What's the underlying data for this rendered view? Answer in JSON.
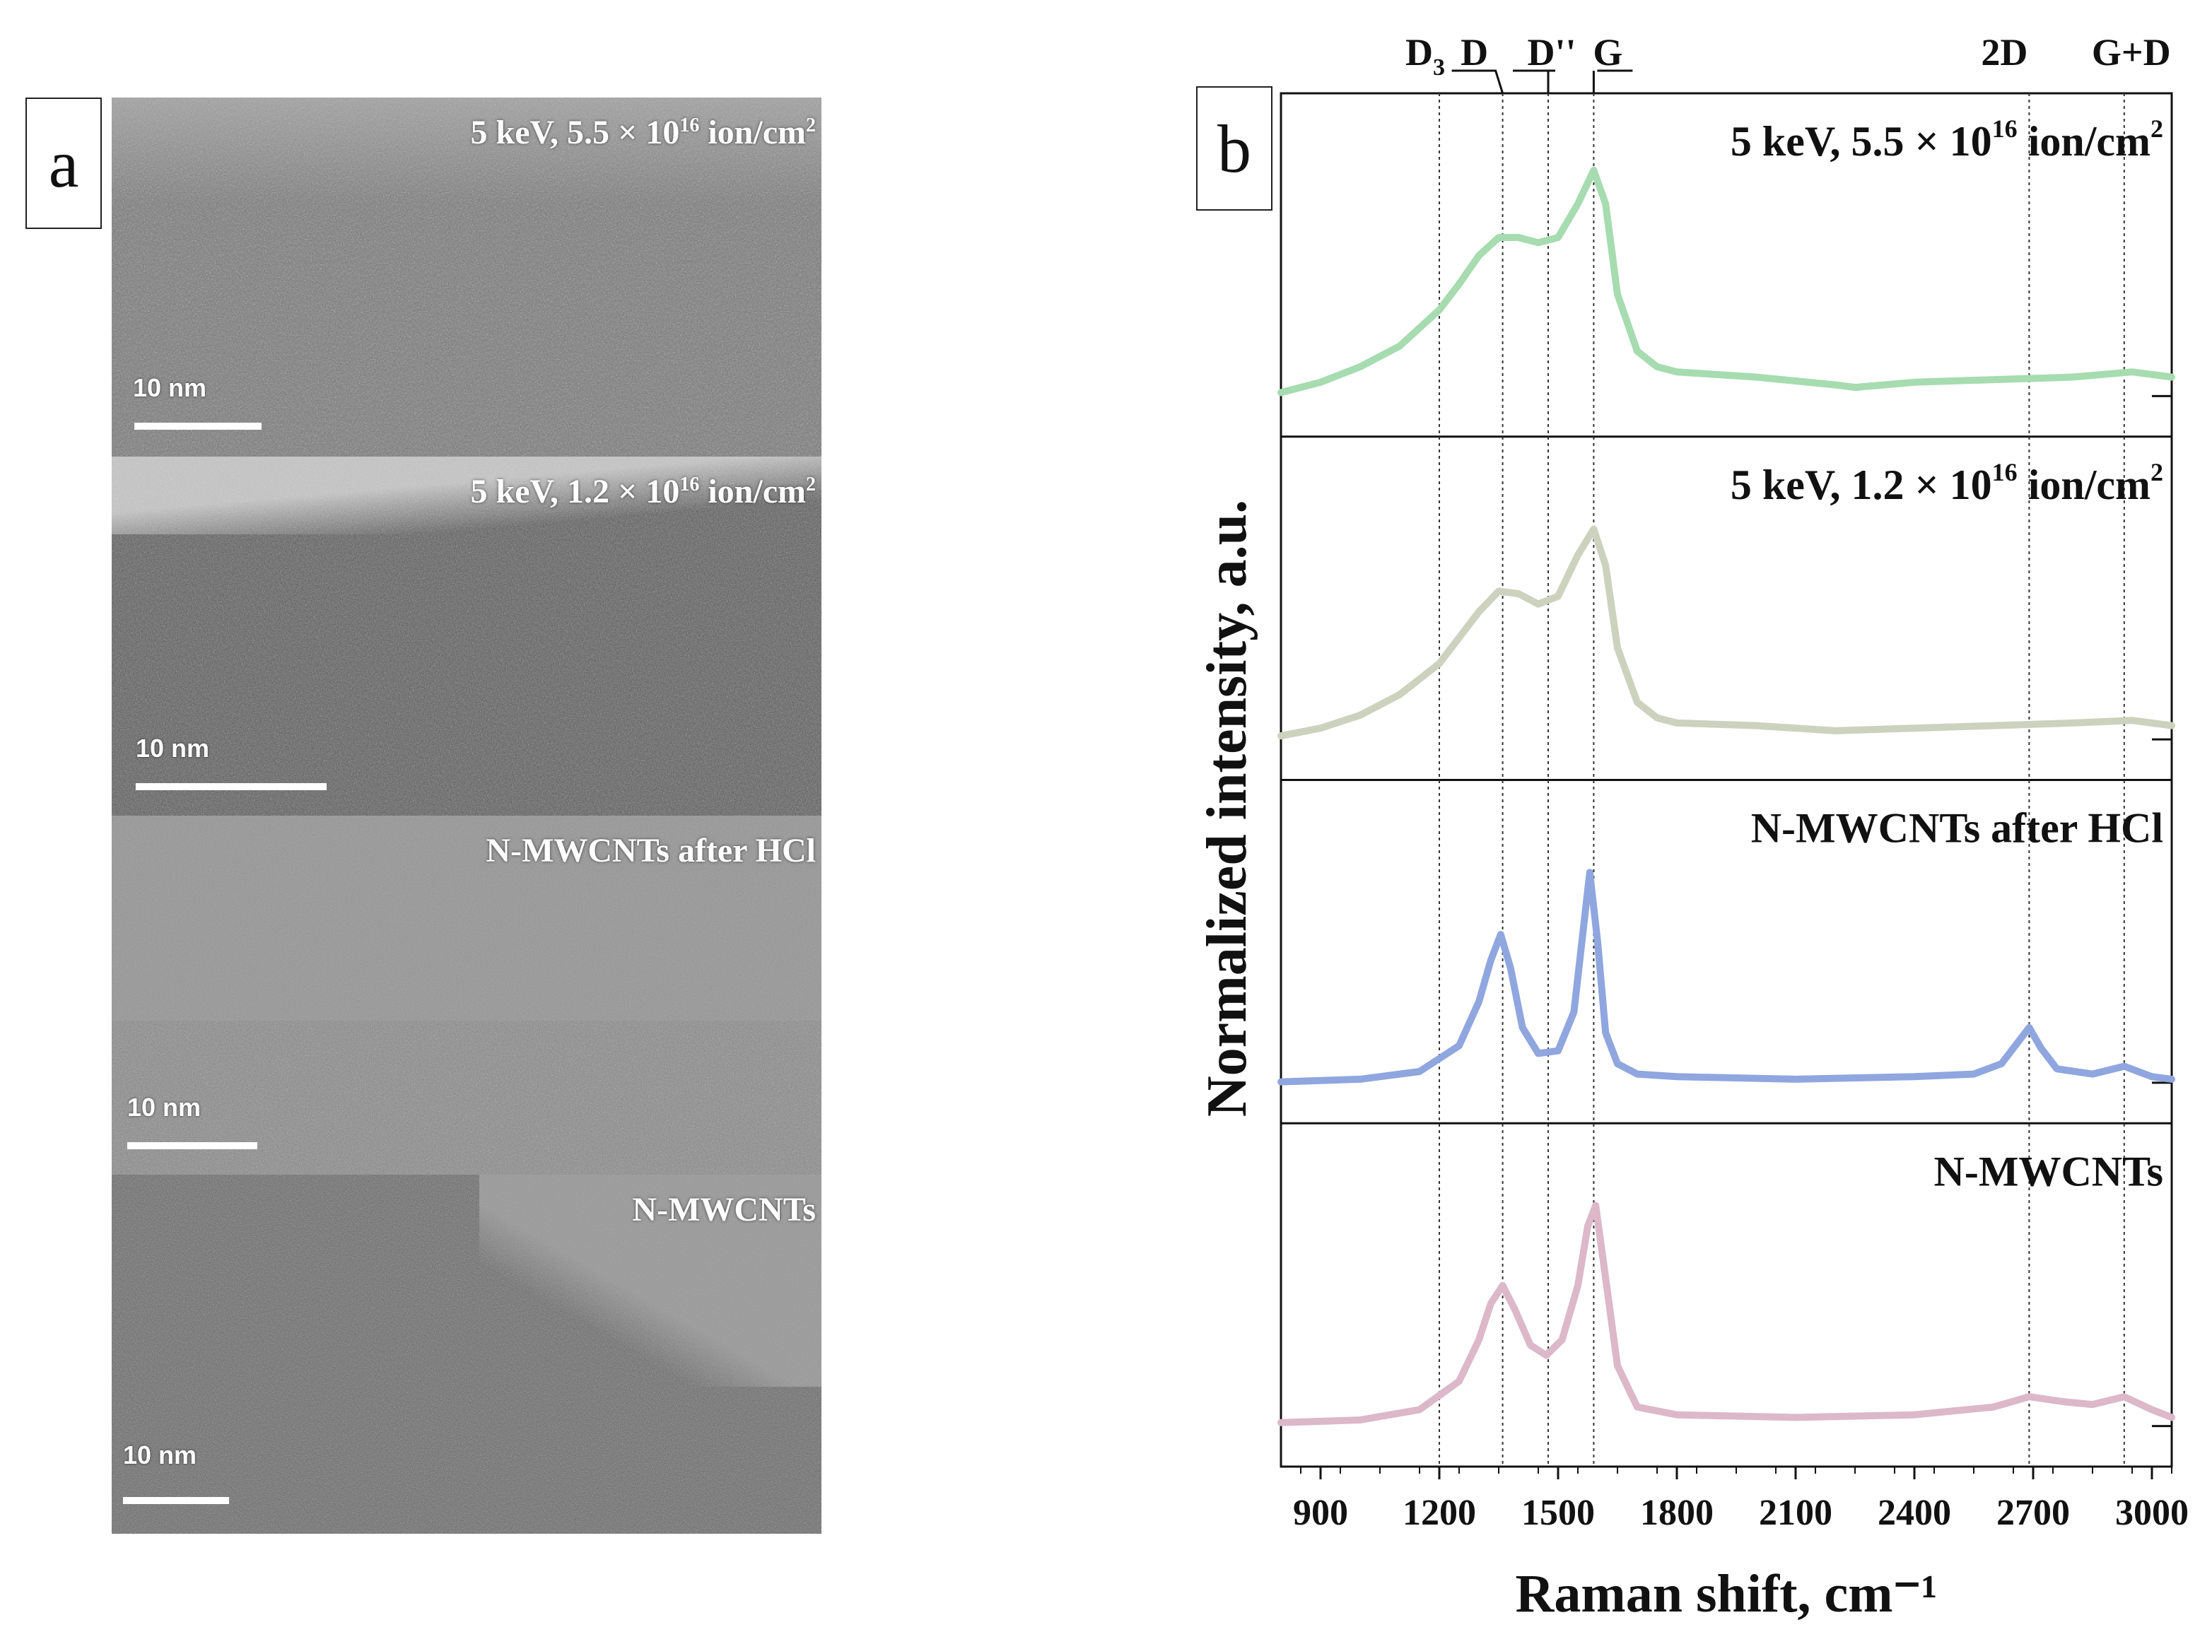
{
  "figure": {
    "panel_a_label": "a",
    "panel_b_label": "b"
  },
  "tem_panels": [
    {
      "caption_prefix": "5 keV, 5.5 ×  10",
      "caption_exp": "16",
      "caption_suffix": " ion/cm",
      "caption_sup2": "2",
      "scale_label": "10 nm",
      "tone": "#7a7a7a"
    },
    {
      "caption_prefix": "5 keV, 1.2 ×  10",
      "caption_exp": "16",
      "caption_suffix": " ion/cm",
      "caption_sup2": "2",
      "scale_label": "10 nm",
      "tone": "#5e5e5e"
    },
    {
      "caption_prefix": "N-MWCNTs after HCl",
      "caption_exp": "",
      "caption_suffix": "",
      "caption_sup2": "",
      "scale_label": "10 nm",
      "tone": "#8a8a8a"
    },
    {
      "caption_prefix": "N-MWCNTs",
      "caption_exp": "",
      "caption_suffix": "",
      "caption_sup2": "",
      "scale_label": "10 nm",
      "tone": "#6a6a6a"
    }
  ],
  "chart_data": {
    "type": "line",
    "xlabel": "Raman shift, cm⁻¹",
    "ylabel": "Normalized intensity, a.u.",
    "xlim": [
      800,
      3050
    ],
    "xticks": [
      900,
      1200,
      1500,
      1800,
      2100,
      2400,
      2700,
      3000
    ],
    "band_lines": [
      {
        "name": "D",
        "sub": "3",
        "x": 1200
      },
      {
        "name": "D",
        "sub": "",
        "x": 1360
      },
      {
        "name": "D''",
        "sub": "",
        "x": 1475
      },
      {
        "name": "G",
        "sub": "",
        "x": 1590
      },
      {
        "name": "2D",
        "sub": "",
        "x": 2690
      },
      {
        "name": "G+D",
        "sub": "",
        "x": 2930
      }
    ],
    "series": [
      {
        "name_prefix": "5 keV, 5.5 × 10",
        "name_exp": "16",
        "name_suffix": " ion/cm",
        "name_sup": "2",
        "color": "#a6dcb0",
        "x": [
          800,
          900,
          1000,
          1100,
          1200,
          1250,
          1300,
          1350,
          1400,
          1450,
          1500,
          1550,
          1590,
          1620,
          1650,
          1700,
          1750,
          1800,
          2000,
          2200,
          2250,
          2400,
          2600,
          2800,
          2950,
          3050
        ],
        "y": [
          0.02,
          0.06,
          0.12,
          0.2,
          0.34,
          0.44,
          0.55,
          0.62,
          0.62,
          0.6,
          0.62,
          0.75,
          0.88,
          0.75,
          0.4,
          0.18,
          0.12,
          0.1,
          0.08,
          0.05,
          0.04,
          0.06,
          0.07,
          0.08,
          0.1,
          0.08
        ]
      },
      {
        "name_prefix": "5 keV, 1.2 × 10",
        "name_exp": "16",
        "name_suffix": " ion/cm",
        "name_sup": "2",
        "color": "#ccd2bd",
        "x": [
          800,
          900,
          1000,
          1100,
          1200,
          1250,
          1300,
          1350,
          1400,
          1450,
          1500,
          1550,
          1590,
          1620,
          1650,
          1700,
          1750,
          1800,
          2000,
          2200,
          2400,
          2600,
          2800,
          2950,
          3050
        ],
        "y": [
          0.02,
          0.05,
          0.1,
          0.18,
          0.3,
          0.4,
          0.5,
          0.58,
          0.57,
          0.53,
          0.56,
          0.72,
          0.82,
          0.68,
          0.36,
          0.15,
          0.09,
          0.07,
          0.06,
          0.04,
          0.05,
          0.06,
          0.07,
          0.08,
          0.06
        ]
      },
      {
        "name_prefix": "N-MWCNTs after HCl",
        "name_exp": "",
        "name_suffix": "",
        "name_sup": "",
        "color": "#8fa6df",
        "x": [
          800,
          1000,
          1150,
          1250,
          1300,
          1330,
          1355,
          1380,
          1410,
          1450,
          1500,
          1540,
          1560,
          1580,
          1600,
          1620,
          1650,
          1700,
          1800,
          2100,
          2400,
          2550,
          2620,
          2660,
          2690,
          2720,
          2760,
          2850,
          2930,
          3000,
          3050
        ],
        "y": [
          0.01,
          0.02,
          0.05,
          0.15,
          0.32,
          0.48,
          0.58,
          0.45,
          0.22,
          0.12,
          0.13,
          0.28,
          0.55,
          0.82,
          0.55,
          0.2,
          0.08,
          0.04,
          0.03,
          0.02,
          0.03,
          0.04,
          0.08,
          0.16,
          0.22,
          0.14,
          0.06,
          0.04,
          0.07,
          0.03,
          0.02
        ]
      },
      {
        "name_prefix": "N-MWCNTs",
        "name_exp": "",
        "name_suffix": "",
        "name_sup": "",
        "color": "#dcb8c9",
        "x": [
          800,
          1000,
          1150,
          1250,
          1300,
          1330,
          1360,
          1390,
          1430,
          1470,
          1510,
          1550,
          1575,
          1595,
          1620,
          1650,
          1700,
          1800,
          2100,
          2400,
          2600,
          2690,
          2780,
          2850,
          2930,
          3000,
          3050
        ],
        "y": [
          0.02,
          0.03,
          0.07,
          0.18,
          0.34,
          0.48,
          0.55,
          0.46,
          0.32,
          0.28,
          0.34,
          0.55,
          0.78,
          0.86,
          0.58,
          0.24,
          0.08,
          0.05,
          0.04,
          0.05,
          0.08,
          0.12,
          0.1,
          0.09,
          0.12,
          0.07,
          0.04
        ]
      }
    ]
  }
}
